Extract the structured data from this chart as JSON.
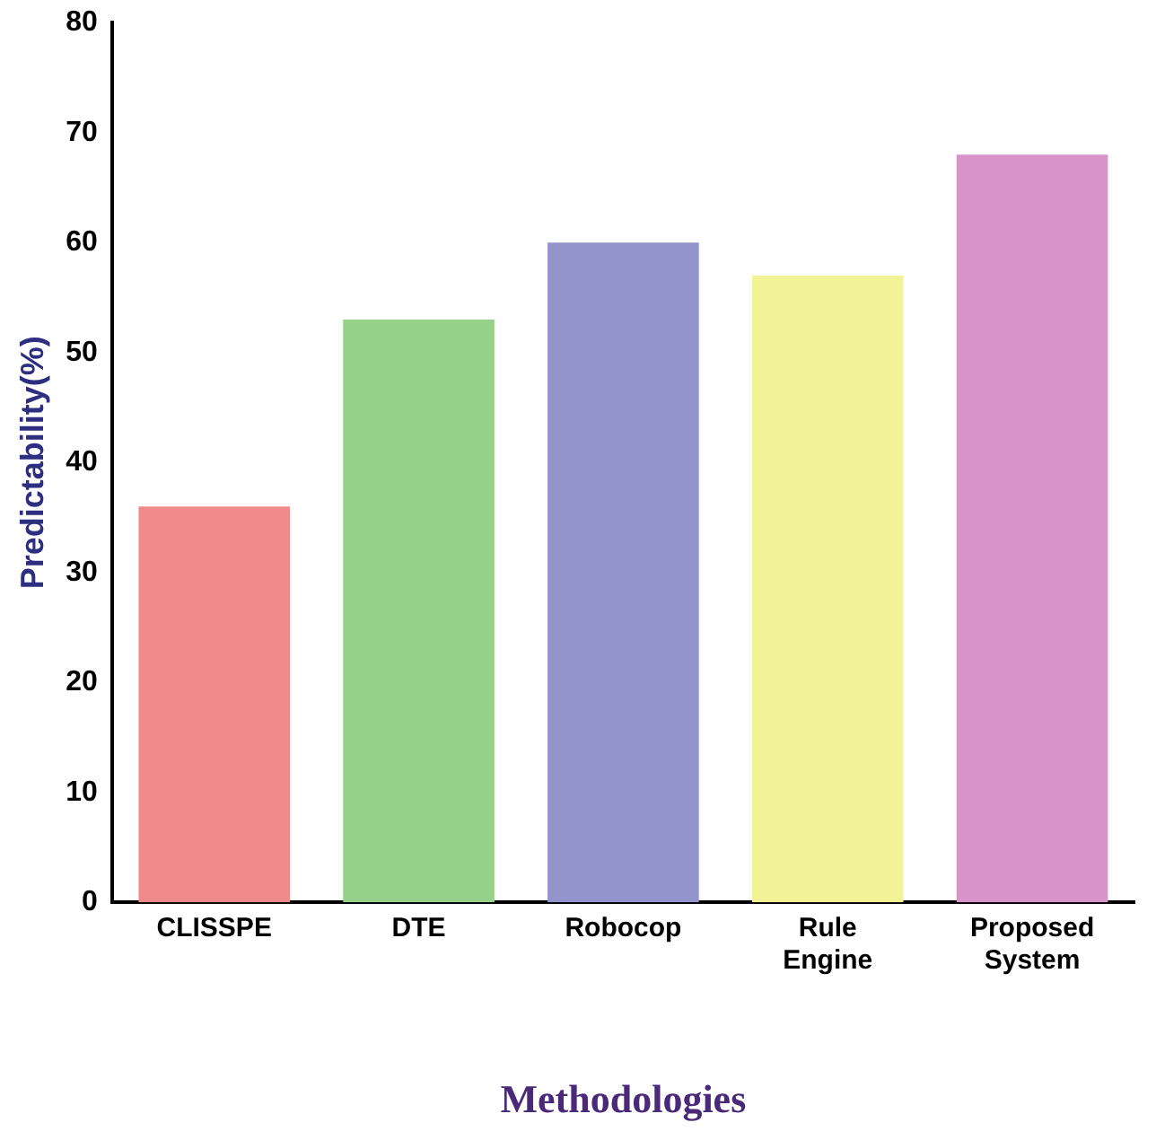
{
  "chart_data": {
    "type": "bar",
    "xlabel": "Methodologies",
    "ylabel": "Predictability(%)",
    "categories": [
      "CLISSPE",
      "DTE",
      "Robocop",
      "Rule Engine",
      "Proposed System"
    ],
    "values": [
      36,
      53,
      60,
      57,
      68
    ],
    "colors": [
      "#f08a8a",
      "#96d28a",
      "#9494cc",
      "#f2f296",
      "#d894c8"
    ],
    "ylim": [
      0,
      80
    ],
    "yticks": [
      0,
      10,
      20,
      30,
      40,
      50,
      60,
      70,
      80
    ],
    "grid": false,
    "legend": false
  }
}
